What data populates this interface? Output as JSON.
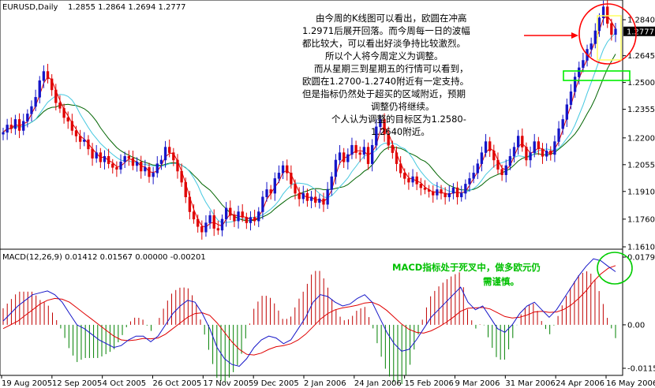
{
  "header": {
    "symbol": "EURUSD,Daily",
    "ohlc": "1.2855 1.2864 1.2694 1.2777"
  },
  "macd_header": {
    "label": "MACD(12,26,9) 0.01412 0.01567 0.00000 -0.00201"
  },
  "annotations": {
    "main_lines": [
      "由今周的K线图可以看出，欧圆在冲高",
      "1.2971后展开回落。而今周每一日的波幅",
      "都比较大，可以看出好淡争持比较激烈。",
      "所以个人将今周定义为调整。",
      "而从星期三到星期五的行情可以看到，",
      "欧圆在1.2700-1.2740附近有一定支持。",
      "但是指标仍然处于超买的区域附近，预期",
      "调整仍将继续。",
      "个人认为调整的目标区为1.2580-",
      "1.2640附近。"
    ],
    "macd_lines": [
      "MACD指标处于死叉中，做多欧元仍",
      "需谨慎。"
    ]
  },
  "colors": {
    "bull": "#1515c8",
    "bear": "#e00000",
    "ma_fast": "#e00000",
    "ma_mid": "#45c8e0",
    "ma_slow": "#006400",
    "macd_line": "#1515c8",
    "signal_line": "#e00000",
    "hist_pos": "#c00000",
    "hist_neg": "#008000",
    "circle_red": "#ff0000",
    "circle_green": "#00cc00",
    "box_yellow": "#ffff60"
  },
  "chart_data": [
    {
      "type": "candlestick",
      "price_ticks": [
        "1.2840",
        "1.2645",
        "1.2500",
        "1.2355",
        "1.2200",
        "1.2055",
        "1.1910",
        "1.1760",
        "1.1610"
      ],
      "price_tick_values": [
        1.284,
        1.2645,
        1.25,
        1.2355,
        1.22,
        1.2055,
        1.191,
        1.176,
        1.161
      ],
      "current_price": "1.2777",
      "date_ticks": [
        "19 Aug 2005",
        "12 Sep 2005",
        "4 Oct 2005",
        "26 Oct 2005",
        "17 Nov 2005",
        "9 Dec 2005",
        "2 Jan 2006",
        "24 Jan 2006",
        "15 Feb 2006",
        "9 Mar 2006",
        "31 Mar 2006",
        "24 Apr 2006",
        "16 May 2006"
      ],
      "closes": [
        1.223,
        1.227,
        1.225,
        1.23,
        1.224,
        1.229,
        1.233,
        1.237,
        1.242,
        1.251,
        1.256,
        1.252,
        1.246,
        1.239,
        1.236,
        1.231,
        1.229,
        1.224,
        1.221,
        1.218,
        1.219,
        1.214,
        1.209,
        1.212,
        1.207,
        1.21,
        1.206,
        1.204,
        1.203,
        1.207,
        1.21,
        1.209,
        1.205,
        1.207,
        1.202,
        1.204,
        1.199,
        1.201,
        1.206,
        1.208,
        1.215,
        1.212,
        1.208,
        1.202,
        1.196,
        1.188,
        1.18,
        1.176,
        1.172,
        1.169,
        1.174,
        1.178,
        1.171,
        1.17,
        1.176,
        1.182,
        1.178,
        1.175,
        1.18,
        1.177,
        1.174,
        1.177,
        1.175,
        1.18,
        1.188,
        1.192,
        1.19,
        1.198,
        1.201,
        1.205,
        1.201,
        1.195,
        1.19,
        1.187,
        1.19,
        1.186,
        1.188,
        1.185,
        1.187,
        1.184,
        1.192,
        1.199,
        1.208,
        1.212,
        1.207,
        1.211,
        1.216,
        1.212,
        1.211,
        1.215,
        1.206,
        1.216,
        1.226,
        1.23,
        1.222,
        1.216,
        1.212,
        1.206,
        1.201,
        1.198,
        1.196,
        1.199,
        1.195,
        1.193,
        1.192,
        1.191,
        1.189,
        1.192,
        1.19,
        1.188,
        1.19,
        1.193,
        1.188,
        1.19,
        1.195,
        1.198,
        1.201,
        1.206,
        1.212,
        1.218,
        1.213,
        1.208,
        1.203,
        1.2,
        1.205,
        1.21,
        1.215,
        1.221,
        1.215,
        1.208,
        1.212,
        1.218,
        1.214,
        1.21,
        1.213,
        1.211,
        1.218,
        1.225,
        1.23,
        1.238,
        1.245,
        1.253,
        1.258,
        1.262,
        1.268,
        1.271,
        1.278,
        1.285,
        1.291,
        1.282,
        1.276,
        1.279
      ]
    },
    {
      "type": "macd",
      "params": "12,26,9",
      "ticks": [
        "0.01797",
        "0.00",
        "-0.01153"
      ],
      "tick_values": [
        0.01797,
        0.0,
        -0.01153
      ],
      "macd": [
        0.001,
        0.003,
        0.005,
        0.0065,
        0.008,
        0.0085,
        0.009,
        0.008,
        0.006,
        0.003,
        0.0,
        -0.001,
        -0.0025,
        -0.004,
        -0.005,
        -0.006,
        -0.0055,
        -0.004,
        -0.003,
        -0.003,
        -0.0045,
        -0.003,
        0.0,
        0.003,
        0.005,
        0.0065,
        0.006,
        0.003,
        -0.001,
        -0.006,
        -0.009,
        -0.0105,
        -0.011,
        -0.009,
        -0.006,
        -0.004,
        -0.003,
        -0.0035,
        -0.005,
        -0.004,
        -0.001,
        0.002,
        0.006,
        0.008,
        0.0075,
        0.006,
        0.005,
        0.0055,
        0.007,
        0.008,
        0.006,
        0.002,
        -0.002,
        -0.005,
        -0.007,
        -0.0065,
        -0.004,
        -0.001,
        0.002,
        0.004,
        0.006,
        0.008,
        0.01,
        0.006,
        0.004,
        0.005,
        0.002,
        -0.001,
        -0.002,
        0.0,
        0.003,
        0.005,
        0.006,
        0.004,
        0.002,
        0.004,
        0.007,
        0.01,
        0.013,
        0.0155,
        0.0175,
        0.017,
        0.0155,
        0.0141
      ],
      "signal": [
        -0.001,
        0.0,
        0.001,
        0.0025,
        0.004,
        0.0055,
        0.0065,
        0.007,
        0.0068,
        0.006,
        0.0045,
        0.003,
        0.0015,
        0.0,
        -0.0015,
        -0.003,
        -0.004,
        -0.0042,
        -0.004,
        -0.0036,
        -0.0037,
        -0.0035,
        -0.0025,
        -0.001,
        0.0005,
        0.002,
        0.003,
        0.0032,
        0.0025,
        0.0005,
        -0.002,
        -0.0045,
        -0.0065,
        -0.0078,
        -0.008,
        -0.0075,
        -0.0065,
        -0.0058,
        -0.0055,
        -0.005,
        -0.004,
        -0.0025,
        -0.0005,
        0.0015,
        0.003,
        0.004,
        0.0045,
        0.0048,
        0.0052,
        0.0058,
        0.006,
        0.0052,
        0.0038,
        0.002,
        0.0002,
        -0.0012,
        -0.002,
        -0.0022,
        -0.0016,
        -0.0006,
        0.0006,
        0.002,
        0.0036,
        0.0044,
        0.0045,
        0.0046,
        0.0042,
        0.0032,
        0.0022,
        0.0018,
        0.002,
        0.0026,
        0.0034,
        0.0036,
        0.0033,
        0.0034,
        0.0041,
        0.0053,
        0.007,
        0.009,
        0.0115,
        0.0135,
        0.015,
        0.0157
      ]
    }
  ]
}
